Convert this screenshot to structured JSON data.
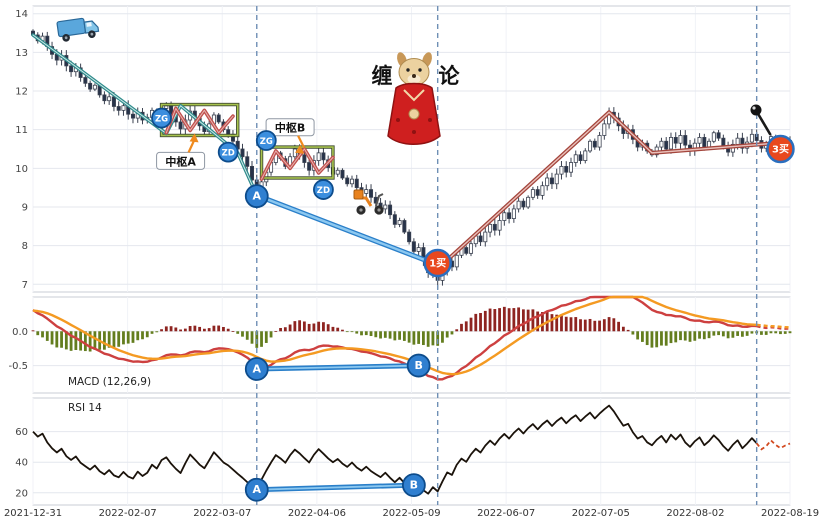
{
  "decor": {
    "mascot_left": "缠",
    "mascot_right": "论"
  },
  "colors": {
    "up_candle": "#ffffff",
    "down_candle": "#27334a",
    "candle_outline": "#3a4150",
    "hist_pos": "#8e2420",
    "hist_neg": "#637d1e",
    "dif": "#cd4040",
    "dea": "#f49a22",
    "rsi_line": "#1b130b",
    "rsi_tail": "#d2491f",
    "vline": "#6f8fb5",
    "divergence": "#2a7fc9",
    "divergence_core": "#8cc8f0",
    "grid": "#e4e7ee",
    "vgrid": "#f0f2f7",
    "panel_border": "#c9ccd4",
    "pivot_box_outer": "#2f3b1f",
    "pivot_box_inner": "#a7c34d",
    "arrow": "#ef8a1e"
  },
  "chart_data": [
    {
      "id": "price",
      "type": "candlestick",
      "ylim": [
        6.8,
        14.2
      ],
      "yticks": [
        {
          "label": "14",
          "value": 14
        },
        {
          "label": "13",
          "value": 13
        },
        {
          "label": "12",
          "value": 12
        },
        {
          "label": "11",
          "value": 11
        },
        {
          "label": "10",
          "value": 10
        },
        {
          "label": "9",
          "value": 9
        },
        {
          "label": "8",
          "value": 8
        },
        {
          "label": "7",
          "value": 7
        }
      ],
      "x_labels": [
        "2021-12-31",
        "2022-02-07",
        "2022-03-07",
        "2022-04-06",
        "2022-05-09",
        "2022-06-07",
        "2022-07-05",
        "2022-08-02",
        "2022-08-19"
      ],
      "closes": [
        13.45,
        13.3,
        13.42,
        13.15,
        12.95,
        12.8,
        12.92,
        12.65,
        12.5,
        12.6,
        12.35,
        12.2,
        12.05,
        12.15,
        11.9,
        11.75,
        11.85,
        11.6,
        11.5,
        11.62,
        11.4,
        11.3,
        11.45,
        11.25,
        11.32,
        11.5,
        11.35,
        11.55,
        11.62,
        11.4,
        11.2,
        11.02,
        11.25,
        11.48,
        11.3,
        11.1,
        10.95,
        11.15,
        11.38,
        11.2,
        11.0,
        10.88,
        10.7,
        10.5,
        10.3,
        10.05,
        9.7,
        9.35,
        9.65,
        9.9,
        10.15,
        10.4,
        10.25,
        10.05,
        10.3,
        10.5,
        10.35,
        10.15,
        9.95,
        10.2,
        10.4,
        10.22,
        10.02,
        9.85,
        9.95,
        9.75,
        9.6,
        9.72,
        9.5,
        9.35,
        9.45,
        9.25,
        9.1,
        8.95,
        9.05,
        8.8,
        8.55,
        8.65,
        8.35,
        8.1,
        7.85,
        7.95,
        7.6,
        7.3,
        7.45,
        7.1,
        7.35,
        7.6,
        7.45,
        7.75,
        7.95,
        7.8,
        8.05,
        8.25,
        8.1,
        8.35,
        8.55,
        8.4,
        8.65,
        8.85,
        8.7,
        8.95,
        9.15,
        9.0,
        9.25,
        9.45,
        9.3,
        9.55,
        9.75,
        9.6,
        9.85,
        10.05,
        9.9,
        10.15,
        10.35,
        10.2,
        10.45,
        10.7,
        10.55,
        10.85,
        11.15,
        11.45,
        11.3,
        11.1,
        10.9,
        11.0,
        10.75,
        10.55,
        10.65,
        10.45,
        10.35,
        10.55,
        10.7,
        10.5,
        10.8,
        10.65,
        10.85,
        10.6,
        10.45,
        10.65,
        10.8,
        10.55,
        10.7,
        10.92,
        10.78,
        10.58,
        10.42,
        10.62,
        10.78,
        10.52,
        10.68,
        10.88,
        10.72,
        10.52,
        10.62,
        10.82,
        10.68,
        10.58,
        10.66,
        10.72
      ],
      "low_overrides": {
        "47": 9.18,
        "85": 6.88
      },
      "vlines": [
        47,
        85,
        152
      ],
      "overlays": [
        {
          "name": "stroke-downtrend-teal",
          "color": "#2e8b8b",
          "core": "#cfe8e8",
          "width": 3.4,
          "points": [
            [
              0,
              13.45
            ],
            [
              28,
              10.9
            ],
            [
              31,
              11.62
            ],
            [
              43,
              10.4
            ],
            [
              47,
              9.3
            ]
          ]
        },
        {
          "name": "pivot-a-zigzag",
          "color": "#c0504d",
          "core": "#e8b4b0",
          "width": 3.6,
          "points": [
            [
              28,
              10.92
            ],
            [
              30,
              11.55
            ],
            [
              33,
              10.98
            ],
            [
              36,
              11.5
            ],
            [
              39,
              10.92
            ],
            [
              42,
              11.35
            ]
          ]
        },
        {
          "name": "pivot-b-zigzag",
          "color": "#c0504d",
          "core": "#e8b4b0",
          "width": 3.6,
          "points": [
            [
              48,
              9.72
            ],
            [
              51,
              10.45
            ],
            [
              54,
              10.0
            ],
            [
              57,
              10.5
            ],
            [
              60,
              9.88
            ],
            [
              63,
              10.28
            ]
          ]
        },
        {
          "name": "divergence-line-a-to-1buy",
          "color": "#2a7fc9",
          "core": "#8cc8f0",
          "width": 5,
          "points": [
            [
              47,
              9.3
            ],
            [
              85,
              7.5
            ]
          ]
        },
        {
          "name": "stroke-recovery-red",
          "color": "#a4453c",
          "core": "#e9c0ba",
          "width": 4,
          "points": [
            [
              85,
              7.4
            ],
            [
              121,
              11.45
            ],
            [
              130,
              10.4
            ],
            [
              159,
              10.68
            ]
          ]
        }
      ],
      "pivot_boxes": [
        {
          "label": "中枢A",
          "day_start": 27,
          "day_end": 43,
          "price_low": 10.85,
          "price_high": 11.65,
          "label_side": "below",
          "label_day": 31,
          "label_price": 10.18
        },
        {
          "label": "中枢B",
          "day_start": 48,
          "day_end": 63,
          "price_low": 9.75,
          "price_high": 10.55,
          "label_side": "above",
          "label_day": 54,
          "label_price": 11.05
        }
      ],
      "markers": [
        {
          "text": "ZG",
          "day": 27,
          "price": 11.3,
          "style": "small"
        },
        {
          "text": "ZD",
          "day": 41,
          "price": 10.42,
          "style": "small"
        },
        {
          "text": "ZG",
          "day": 49,
          "price": 10.72,
          "style": "small"
        },
        {
          "text": "ZD",
          "day": 61,
          "price": 9.45,
          "style": "small"
        },
        {
          "text": "A",
          "day": 47,
          "price": 9.28,
          "style": "big"
        },
        {
          "text": "1买",
          "day": 85,
          "price": 7.55,
          "style": "buy"
        },
        {
          "text": "3买",
          "day": 157,
          "price": 10.5,
          "style": "buy"
        }
      ]
    },
    {
      "id": "macd",
      "type": "line+histogram",
      "label": "MACD (12,26,9)",
      "ylim": [
        -0.9,
        0.5
      ],
      "yticks": [
        {
          "label": "0.0",
          "value": 0
        },
        {
          "label": "-0.5",
          "value": -0.5
        }
      ],
      "params": {
        "fast": 12,
        "slow": 26,
        "signal": 9,
        "seed_fast_offset": 0.18,
        "seed_slow_offset": -0.17,
        "seed_signal": 0.3,
        "hist_scale": 1.8
      },
      "divergence_line": [
        [
          47,
          -0.55
        ],
        [
          81,
          -0.5
        ]
      ],
      "markers": [
        {
          "text": "A",
          "day": 47,
          "value": -0.55,
          "style": "big"
        },
        {
          "text": "B",
          "day": 81,
          "value": -0.5,
          "style": "big"
        }
      ]
    },
    {
      "id": "rsi",
      "type": "line",
      "label": "RSI 14",
      "ylim": [
        12,
        82
      ],
      "yticks": [
        {
          "label": "60",
          "value": 60
        },
        {
          "label": "40",
          "value": 40
        },
        {
          "label": "20",
          "value": 20
        }
      ],
      "params": {
        "period": 14,
        "seed_gain": 0.12,
        "seed_loss": 0.08
      },
      "divergence_line": [
        [
          47,
          22
        ],
        [
          80,
          25
        ]
      ],
      "markers": [
        {
          "text": "A",
          "day": 47,
          "value": 22,
          "style": "big"
        },
        {
          "text": "B",
          "day": 80,
          "value": 25,
          "style": "big"
        }
      ]
    }
  ]
}
